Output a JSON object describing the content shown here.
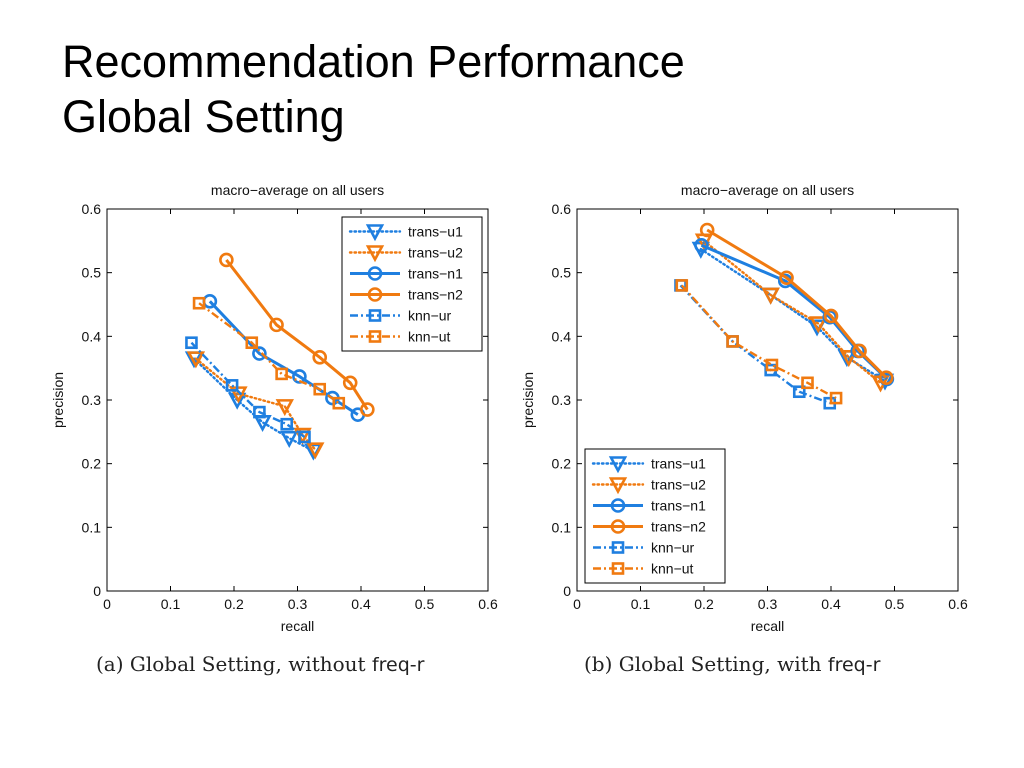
{
  "slide": {
    "title_line1": "Recommendation Performance",
    "title_line2": "Global Setting"
  },
  "captions": [
    {
      "label": "(a)",
      "text": "Global Setting, without",
      "tag": "freq-r"
    },
    {
      "label": "(b)",
      "text": "Global Setting, with",
      "tag": "freq-r"
    }
  ],
  "colors": {
    "blue": "#1f7fe0",
    "orange": "#f07a10"
  },
  "chart_data": [
    {
      "type": "line",
      "title": "macro−average on all users",
      "xlabel": "recall",
      "ylabel": "precision",
      "xlim": [
        0,
        0.6
      ],
      "ylim": [
        0,
        0.6
      ],
      "xticks": [
        "0",
        "0.1",
        "0.2",
        "0.3",
        "0.4",
        "0.5",
        "0.6"
      ],
      "yticks": [
        "0",
        "0.1",
        "0.2",
        "0.3",
        "0.4",
        "0.5",
        "0.6"
      ],
      "legend_position": "top-right",
      "series": [
        {
          "name": "trans−u1",
          "color": "blue",
          "line": "dotted",
          "marker": "triangle-down",
          "x": [
            0.137,
            0.205,
            0.245,
            0.287,
            0.325
          ],
          "y": [
            0.365,
            0.3,
            0.265,
            0.24,
            0.22
          ]
        },
        {
          "name": "trans−u2",
          "color": "orange",
          "line": "dotted",
          "marker": "triangle-down",
          "x": [
            0.14,
            0.207,
            0.28,
            0.308,
            0.328
          ],
          "y": [
            0.365,
            0.31,
            0.29,
            0.245,
            0.222
          ]
        },
        {
          "name": "trans−n1",
          "color": "blue",
          "line": "solid",
          "marker": "circle",
          "x": [
            0.162,
            0.24,
            0.303,
            0.355,
            0.395
          ],
          "y": [
            0.455,
            0.373,
            0.337,
            0.303,
            0.277
          ]
        },
        {
          "name": "trans−n2",
          "color": "orange",
          "line": "solid",
          "marker": "circle",
          "x": [
            0.188,
            0.267,
            0.335,
            0.383,
            0.41
          ],
          "y": [
            0.52,
            0.418,
            0.367,
            0.327,
            0.285
          ]
        },
        {
          "name": "knn−ur",
          "color": "blue",
          "line": "dashdot",
          "marker": "square",
          "x": [
            0.133,
            0.197,
            0.24,
            0.283,
            0.311
          ],
          "y": [
            0.39,
            0.323,
            0.281,
            0.262,
            0.242
          ]
        },
        {
          "name": "knn−ut",
          "color": "orange",
          "line": "dashdot",
          "marker": "square",
          "x": [
            0.145,
            0.228,
            0.275,
            0.335,
            0.365
          ],
          "y": [
            0.452,
            0.39,
            0.341,
            0.317,
            0.295
          ]
        }
      ]
    },
    {
      "type": "line",
      "title": "macro−average on all users",
      "xlabel": "recall",
      "ylabel": "precision",
      "xlim": [
        0,
        0.6
      ],
      "ylim": [
        0,
        0.6
      ],
      "xticks": [
        "0",
        "0.1",
        "0.2",
        "0.3",
        "0.4",
        "0.5",
        "0.6"
      ],
      "yticks": [
        "0",
        "0.1",
        "0.2",
        "0.3",
        "0.4",
        "0.5",
        "0.6"
      ],
      "legend_position": "bottom-left",
      "series": [
        {
          "name": "trans−u1",
          "color": "blue",
          "line": "dotted",
          "marker": "triangle-down",
          "x": [
            0.195,
            0.305,
            0.378,
            0.425,
            0.485
          ],
          "y": [
            0.537,
            0.465,
            0.415,
            0.367,
            0.33
          ]
        },
        {
          "name": "trans−u2",
          "color": "orange",
          "line": "dotted",
          "marker": "triangle-down",
          "x": [
            0.2,
            0.305,
            0.38,
            0.428,
            0.478
          ],
          "y": [
            0.55,
            0.465,
            0.42,
            0.367,
            0.327
          ]
        },
        {
          "name": "trans−n1",
          "color": "blue",
          "line": "solid",
          "marker": "circle",
          "x": [
            0.196,
            0.328,
            0.398,
            0.442,
            0.488
          ],
          "y": [
            0.543,
            0.487,
            0.43,
            0.377,
            0.333
          ]
        },
        {
          "name": "trans−n2",
          "color": "orange",
          "line": "solid",
          "marker": "circle",
          "x": [
            0.205,
            0.33,
            0.4,
            0.445,
            0.487
          ],
          "y": [
            0.567,
            0.492,
            0.432,
            0.377,
            0.335
          ]
        },
        {
          "name": "knn−ur",
          "color": "blue",
          "line": "dashdot",
          "marker": "square",
          "x": [
            0.163,
            0.245,
            0.305,
            0.35,
            0.398
          ],
          "y": [
            0.48,
            0.392,
            0.347,
            0.313,
            0.295
          ]
        },
        {
          "name": "knn−ut",
          "color": "orange",
          "line": "dashdot",
          "marker": "square",
          "x": [
            0.165,
            0.245,
            0.307,
            0.363,
            0.408
          ],
          "y": [
            0.48,
            0.392,
            0.355,
            0.327,
            0.303
          ]
        }
      ]
    }
  ]
}
